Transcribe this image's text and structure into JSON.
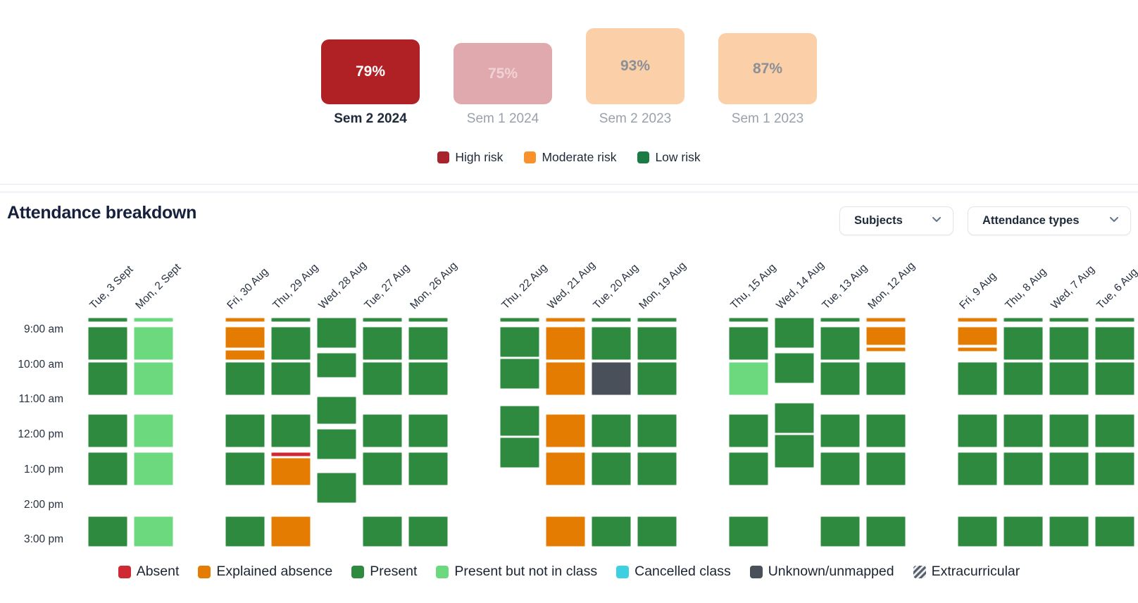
{
  "summary": {
    "cards": [
      {
        "value": "79%",
        "label": "Sem 2 2024",
        "selected": true,
        "bg": "#b02126",
        "value_color": "#ffffff",
        "label_color": "#1d2a3a"
      },
      {
        "value": "75%",
        "label": "Sem 1 2024",
        "selected": false,
        "bg": "#dfa9ae",
        "value_color": "#f0d2d5",
        "label_color": "#9aa1ab"
      },
      {
        "value": "93%",
        "label": "Sem 2 2023",
        "selected": false,
        "bg": "#fbcfa7",
        "value_color": "#8b9097",
        "label_color": "#9aa1ab"
      },
      {
        "value": "87%",
        "label": "Sem 1 2023",
        "selected": false,
        "bg": "#fbcfa7",
        "value_color": "#8b9097",
        "label_color": "#9aa1ab"
      }
    ],
    "risk_legend": [
      {
        "label": "High risk",
        "color": "#a8232b"
      },
      {
        "label": "Moderate risk",
        "color": "#f9912d"
      },
      {
        "label": "Low risk",
        "color": "#1b7b44"
      }
    ]
  },
  "breakdown": {
    "title": "Attendance breakdown",
    "filters": [
      {
        "label": "Subjects"
      },
      {
        "label": "Attendance types"
      }
    ],
    "time_labels": [
      "9:00 am",
      "10:00 am",
      "11:00 am",
      "12:00 pm",
      "1:00 pm",
      "2:00 pm",
      "3:00 pm"
    ],
    "statuses": {
      "present": "#2d8a3e",
      "present_nic": "#6cd97e",
      "explained": "#e57c02",
      "absent": "#cf2a34",
      "cancelled": "#3ecfe2",
      "unknown": "#495059"
    },
    "legend": [
      {
        "label": "Absent",
        "status": "absent"
      },
      {
        "label": "Explained absence",
        "status": "explained"
      },
      {
        "label": "Present",
        "status": "present"
      },
      {
        "label": "Present but not in class",
        "status": "present_nic"
      },
      {
        "label": "Cancelled class",
        "status": "cancelled"
      },
      {
        "label": "Unknown/unmapped",
        "status": "unknown"
      },
      {
        "label": "Extracurricular",
        "status": "extracurricular"
      }
    ],
    "groups": [
      {
        "days": [
          {
            "date": "Tue, 3 Sept",
            "cells": [
              [
                "8:40",
                "8:50",
                "present"
              ],
              [
                "8:55",
                "9:55",
                "present"
              ],
              [
                "9:55",
                "10:55",
                "present"
              ],
              [
                "11:25",
                "12:25",
                "present"
              ],
              [
                "12:30",
                "13:30",
                "present"
              ],
              [
                "14:20",
                "15:15",
                "present"
              ]
            ]
          },
          {
            "date": "Mon, 2 Sept",
            "cells": [
              [
                "8:40",
                "8:50",
                "present_nic"
              ],
              [
                "8:55",
                "9:55",
                "present_nic"
              ],
              [
                "9:55",
                "10:55",
                "present_nic"
              ],
              [
                "11:25",
                "12:25",
                "present_nic"
              ],
              [
                "12:30",
                "13:30",
                "present_nic"
              ],
              [
                "14:20",
                "15:15",
                "present_nic"
              ]
            ]
          }
        ]
      },
      {
        "days": [
          {
            "date": "Fri, 30 Aug",
            "cells": [
              [
                "8:40",
                "8:50",
                "explained"
              ],
              [
                "8:55",
                "9:35",
                "explained"
              ],
              [
                "9:35",
                "9:55",
                "explained"
              ],
              [
                "9:55",
                "10:55",
                "present"
              ],
              [
                "11:25",
                "12:25",
                "present"
              ],
              [
                "12:30",
                "13:30",
                "present"
              ],
              [
                "14:20",
                "15:15",
                "present"
              ]
            ]
          },
          {
            "date": "Thu, 29 Aug",
            "cells": [
              [
                "8:40",
                "8:50",
                "present"
              ],
              [
                "8:55",
                "9:55",
                "present"
              ],
              [
                "9:55",
                "10:55",
                "present"
              ],
              [
                "11:25",
                "12:25",
                "present"
              ],
              [
                "12:30",
                "12:40",
                "absent"
              ],
              [
                "12:40",
                "13:30",
                "explained"
              ],
              [
                "14:20",
                "15:15",
                "explained"
              ]
            ]
          },
          {
            "date": "Wed, 28 Aug",
            "cells": [
              [
                "8:40",
                "9:35",
                "present"
              ],
              [
                "9:40",
                "10:25",
                "present"
              ],
              [
                "10:55",
                "11:45",
                "present"
              ],
              [
                "11:50",
                "12:45",
                "present"
              ],
              [
                "13:05",
                "14:00",
                "present"
              ]
            ]
          },
          {
            "date": "Tue, 27 Aug",
            "cells": [
              [
                "8:40",
                "8:50",
                "present"
              ],
              [
                "8:55",
                "9:55",
                "present"
              ],
              [
                "9:55",
                "10:55",
                "present"
              ],
              [
                "11:25",
                "12:25",
                "present"
              ],
              [
                "12:30",
                "13:30",
                "present"
              ],
              [
                "14:20",
                "15:15",
                "present"
              ]
            ]
          },
          {
            "date": "Mon, 26 Aug",
            "cells": [
              [
                "8:40",
                "8:50",
                "present"
              ],
              [
                "8:55",
                "9:55",
                "present"
              ],
              [
                "9:55",
                "10:55",
                "present"
              ],
              [
                "11:25",
                "12:25",
                "present"
              ],
              [
                "12:30",
                "13:30",
                "present"
              ],
              [
                "14:20",
                "15:15",
                "present"
              ]
            ]
          }
        ]
      },
      {
        "days": [
          {
            "date": "Thu, 22 Aug",
            "cells": [
              [
                "8:40",
                "8:50",
                "present"
              ],
              [
                "8:55",
                "9:50",
                "present"
              ],
              [
                "9:50",
                "10:45",
                "present"
              ],
              [
                "11:10",
                "12:05",
                "present"
              ],
              [
                "12:05",
                "13:00",
                "present"
              ]
            ]
          },
          {
            "date": "Wed, 21 Aug",
            "cells": [
              [
                "8:40",
                "8:50",
                "explained"
              ],
              [
                "8:55",
                "9:55",
                "explained"
              ],
              [
                "9:55",
                "10:55",
                "explained"
              ],
              [
                "11:25",
                "12:25",
                "explained"
              ],
              [
                "12:30",
                "13:30",
                "explained"
              ],
              [
                "14:20",
                "15:15",
                "explained"
              ]
            ]
          },
          {
            "date": "Tue, 20 Aug",
            "cells": [
              [
                "8:40",
                "8:50",
                "present"
              ],
              [
                "8:55",
                "9:55",
                "present"
              ],
              [
                "9:55",
                "10:55",
                "unknown"
              ],
              [
                "11:25",
                "12:25",
                "present"
              ],
              [
                "12:30",
                "13:30",
                "present"
              ],
              [
                "14:20",
                "15:15",
                "present"
              ]
            ]
          },
          {
            "date": "Mon, 19 Aug",
            "cells": [
              [
                "8:40",
                "8:50",
                "present"
              ],
              [
                "8:55",
                "9:55",
                "present"
              ],
              [
                "9:55",
                "10:55",
                "present"
              ],
              [
                "11:25",
                "12:25",
                "present"
              ],
              [
                "12:30",
                "13:30",
                "present"
              ],
              [
                "14:20",
                "15:15",
                "present"
              ]
            ]
          }
        ]
      },
      {
        "days": [
          {
            "date": "Thu, 15 Aug",
            "cells": [
              [
                "8:40",
                "8:50",
                "present"
              ],
              [
                "8:55",
                "9:55",
                "present"
              ],
              [
                "9:55",
                "10:55",
                "present_nic"
              ],
              [
                "11:25",
                "12:25",
                "present"
              ],
              [
                "12:30",
                "13:30",
                "present"
              ],
              [
                "14:20",
                "15:15",
                "present"
              ]
            ]
          },
          {
            "date": "Wed, 14 Aug",
            "cells": [
              [
                "8:40",
                "9:35",
                "present"
              ],
              [
                "9:40",
                "10:35",
                "present"
              ],
              [
                "11:05",
                "12:00",
                "present"
              ],
              [
                "12:00",
                "13:00",
                "present"
              ]
            ]
          },
          {
            "date": "Tue, 13 Aug",
            "cells": [
              [
                "8:40",
                "8:50",
                "present"
              ],
              [
                "8:55",
                "9:55",
                "present"
              ],
              [
                "9:55",
                "10:55",
                "present"
              ],
              [
                "11:25",
                "12:25",
                "present"
              ],
              [
                "12:30",
                "13:30",
                "present"
              ],
              [
                "14:20",
                "15:15",
                "present"
              ]
            ]
          },
          {
            "date": "Mon, 12 Aug",
            "cells": [
              [
                "8:40",
                "8:50",
                "explained"
              ],
              [
                "8:55",
                "9:30",
                "explained"
              ],
              [
                "9:30",
                "9:40",
                "explained"
              ],
              [
                "9:55",
                "10:55",
                "present"
              ],
              [
                "11:25",
                "12:25",
                "present"
              ],
              [
                "12:30",
                "13:30",
                "present"
              ],
              [
                "14:20",
                "15:15",
                "present"
              ]
            ]
          }
        ]
      },
      {
        "days": [
          {
            "date": "Fri, 9 Aug",
            "cells": [
              [
                "8:40",
                "8:50",
                "explained"
              ],
              [
                "8:55",
                "9:30",
                "explained"
              ],
              [
                "9:30",
                "9:40",
                "explained"
              ],
              [
                "9:55",
                "10:55",
                "present"
              ],
              [
                "11:25",
                "12:25",
                "present"
              ],
              [
                "12:30",
                "13:30",
                "present"
              ],
              [
                "14:20",
                "15:15",
                "present"
              ]
            ]
          },
          {
            "date": "Thu, 8 Aug",
            "cells": [
              [
                "8:40",
                "8:50",
                "present"
              ],
              [
                "8:55",
                "9:55",
                "present"
              ],
              [
                "9:55",
                "10:55",
                "present"
              ],
              [
                "11:25",
                "12:25",
                "present"
              ],
              [
                "12:30",
                "13:30",
                "present"
              ],
              [
                "14:20",
                "15:15",
                "present"
              ]
            ]
          },
          {
            "date": "Wed, 7 Aug",
            "cells": [
              [
                "8:40",
                "8:50",
                "present"
              ],
              [
                "8:55",
                "9:55",
                "present"
              ],
              [
                "9:55",
                "10:55",
                "present"
              ],
              [
                "11:25",
                "12:25",
                "present"
              ],
              [
                "12:30",
                "13:30",
                "present"
              ],
              [
                "14:20",
                "15:15",
                "present"
              ]
            ]
          },
          {
            "date": "Tue, 6 Aug",
            "cells": [
              [
                "8:40",
                "8:50",
                "present"
              ],
              [
                "8:55",
                "9:55",
                "present"
              ],
              [
                "9:55",
                "10:55",
                "present"
              ],
              [
                "11:25",
                "12:25",
                "present"
              ],
              [
                "12:30",
                "13:30",
                "present"
              ],
              [
                "14:20",
                "15:15",
                "present"
              ]
            ]
          }
        ]
      }
    ]
  }
}
